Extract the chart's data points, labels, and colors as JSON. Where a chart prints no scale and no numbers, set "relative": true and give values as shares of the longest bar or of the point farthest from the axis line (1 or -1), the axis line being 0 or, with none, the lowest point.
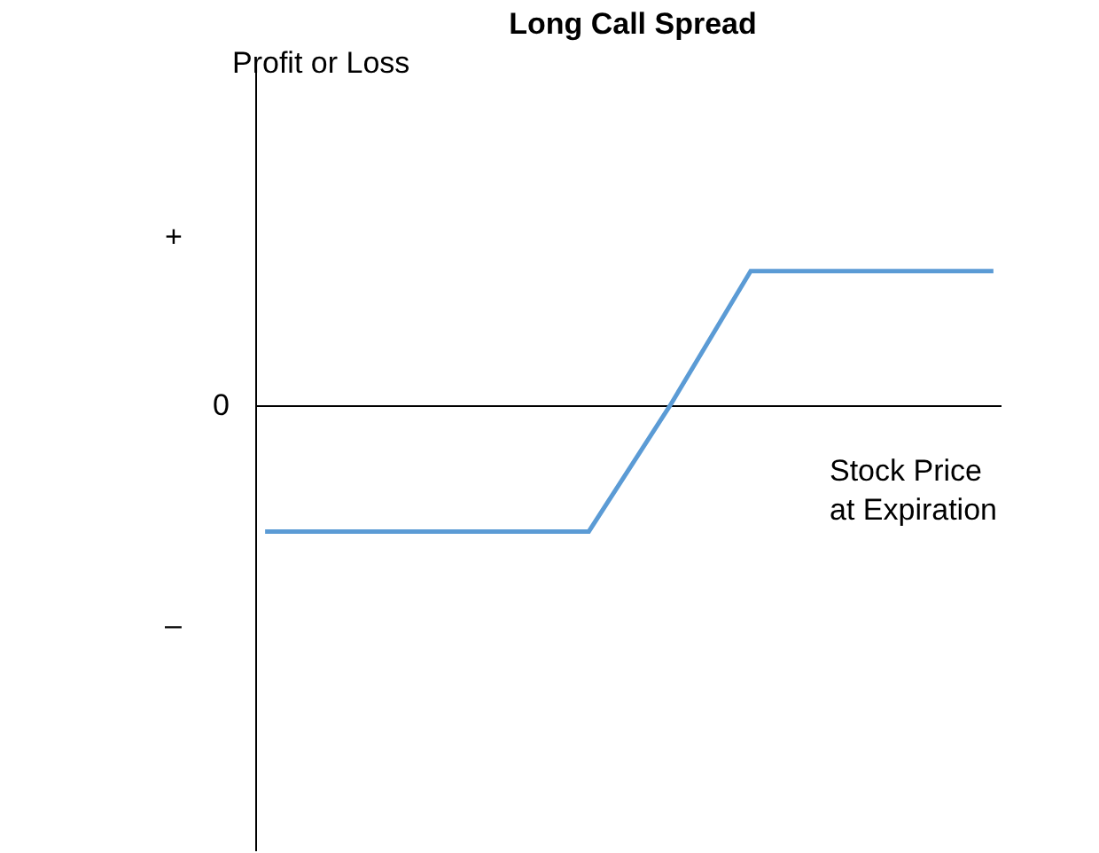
{
  "chart_data": {
    "type": "line",
    "title": "Long Call Spread",
    "xlabel": "Stock Price\nat Expiration",
    "relative": true,
    "categories": [
      null,
      null,
      null,
      null,
      null,
      null,
      null,
      null,
      null,
      null
    ],
    "series": [
      {
        "color": "#5b9bd5",
        "values": [
          -0.93,
          -0.93,
          -0.93,
          -0.93,
          -0.93,
          0,
          1,
          1,
          1,
          1
        ]
      }
    ],
    "annotations": [
      "Profit or Loss",
      "+",
      "0",
      "–"
    ]
  }
}
